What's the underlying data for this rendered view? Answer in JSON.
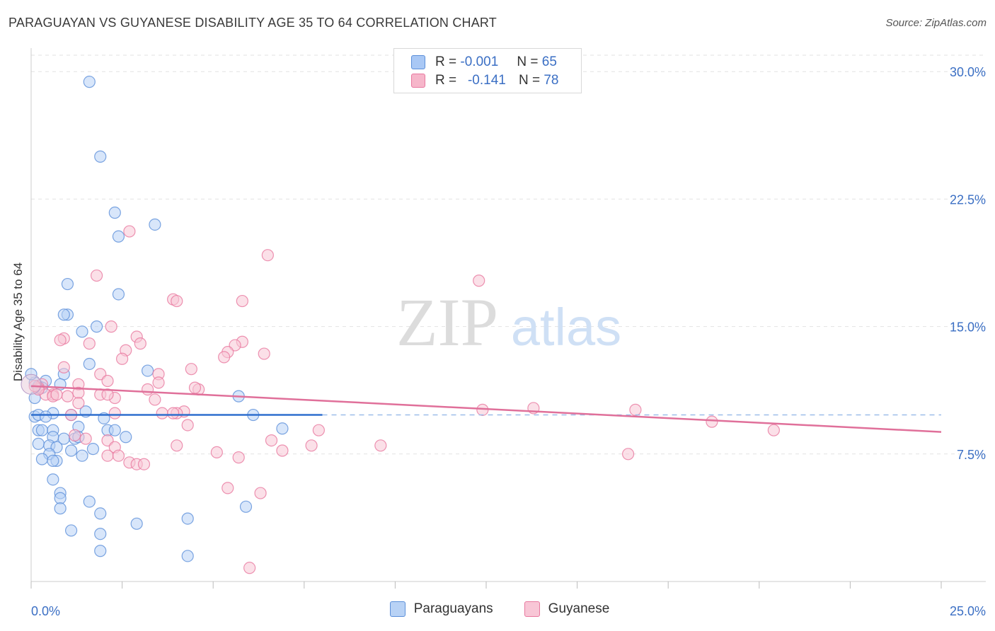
{
  "title": "PARAGUAYAN VS GUYANESE DISABILITY AGE 35 TO 64 CORRELATION CHART",
  "source": "Source: ZipAtlas.com",
  "watermark": {
    "zip": "ZIP",
    "atlas": "atlas"
  },
  "legend": {
    "r_label": "R =",
    "n_label": "N =",
    "rows": [
      {
        "r": "-0.001",
        "n": "65",
        "color": "#a9c8f5"
      },
      {
        "r": "-0.141",
        "n": "78",
        "color": "#f6b6ca"
      }
    ]
  },
  "chart_data": {
    "type": "scatter",
    "title": "PARAGUAYAN VS GUYANESE DISABILITY AGE 35 TO 64 CORRELATION CHART",
    "xlabel": "",
    "ylabel": "Disability Age 35 to 64",
    "xlim": [
      0,
      25
    ],
    "ylim": [
      0,
      31.3
    ],
    "x_tick_labels": [
      "0.0%",
      "25.0%"
    ],
    "y_ticks": [
      7.5,
      15.0,
      22.5,
      30.0
    ],
    "y_tick_labels": [
      "7.5%",
      "15.0%",
      "22.5%",
      "30.0%"
    ],
    "series": [
      {
        "name": "Paraguayans",
        "color": "#5b8fd9",
        "fill": "#b8d2f5",
        "trend": {
          "x": [
            0,
            8.0
          ],
          "y": [
            9.8,
            9.8
          ],
          "dashed_to": 25
        },
        "points": [
          [
            1.6,
            29.4
          ],
          [
            1.9,
            25.0
          ],
          [
            2.3,
            21.7
          ],
          [
            3.4,
            21.0
          ],
          [
            2.4,
            20.3
          ],
          [
            1.0,
            17.5
          ],
          [
            2.4,
            16.9
          ],
          [
            1.0,
            15.7
          ],
          [
            0.9,
            15.7
          ],
          [
            1.4,
            14.7
          ],
          [
            1.8,
            15.0
          ],
          [
            1.6,
            12.8
          ],
          [
            3.2,
            12.4
          ],
          [
            0.9,
            12.2
          ],
          [
            0.4,
            11.8
          ],
          [
            0.1,
            11.7
          ],
          [
            0.2,
            11.5
          ],
          [
            0.3,
            11.4
          ],
          [
            0.8,
            11.6
          ],
          [
            0.1,
            10.8
          ],
          [
            5.7,
            10.9
          ],
          [
            0.6,
            9.9
          ],
          [
            0.1,
            9.7
          ],
          [
            0.2,
            9.8
          ],
          [
            0.4,
            9.7
          ],
          [
            1.1,
            9.8
          ],
          [
            1.5,
            10.0
          ],
          [
            2.0,
            9.6
          ],
          [
            6.1,
            9.8
          ],
          [
            0.2,
            8.9
          ],
          [
            0.3,
            8.9
          ],
          [
            0.6,
            8.9
          ],
          [
            1.3,
            9.1
          ],
          [
            2.1,
            8.9
          ],
          [
            2.3,
            8.9
          ],
          [
            6.9,
            9.0
          ],
          [
            0.6,
            8.5
          ],
          [
            0.9,
            8.4
          ],
          [
            1.2,
            8.4
          ],
          [
            1.3,
            8.5
          ],
          [
            2.6,
            8.5
          ],
          [
            0.2,
            8.1
          ],
          [
            0.5,
            8.0
          ],
          [
            0.7,
            7.9
          ],
          [
            1.1,
            7.7
          ],
          [
            1.7,
            7.8
          ],
          [
            0.5,
            7.5
          ],
          [
            0.3,
            7.2
          ],
          [
            0.7,
            7.1
          ],
          [
            0.6,
            7.1
          ],
          [
            1.4,
            7.4
          ],
          [
            0.6,
            6.0
          ],
          [
            0.8,
            5.2
          ],
          [
            0.8,
            4.9
          ],
          [
            1.6,
            4.7
          ],
          [
            0.8,
            4.3
          ],
          [
            5.9,
            4.4
          ],
          [
            1.9,
            4.0
          ],
          [
            4.3,
            3.7
          ],
          [
            2.9,
            3.4
          ],
          [
            1.1,
            3.0
          ],
          [
            1.9,
            2.8
          ],
          [
            1.9,
            1.8
          ],
          [
            4.3,
            1.5
          ],
          [
            0.0,
            12.2
          ]
        ]
      },
      {
        "name": "Guyanese",
        "color": "#e8789f",
        "fill": "#f8c6d6",
        "trend": {
          "x": [
            0,
            25
          ],
          "y": [
            11.5,
            8.8
          ]
        },
        "points": [
          [
            2.7,
            20.6
          ],
          [
            6.5,
            19.2
          ],
          [
            12.3,
            17.7
          ],
          [
            1.8,
            18.0
          ],
          [
            3.9,
            16.6
          ],
          [
            4.0,
            16.5
          ],
          [
            5.8,
            16.5
          ],
          [
            2.2,
            15.0
          ],
          [
            0.9,
            14.3
          ],
          [
            2.9,
            14.4
          ],
          [
            0.8,
            14.2
          ],
          [
            3.0,
            14.0
          ],
          [
            5.8,
            14.1
          ],
          [
            5.6,
            13.9
          ],
          [
            1.6,
            14.0
          ],
          [
            2.6,
            13.6
          ],
          [
            5.4,
            13.5
          ],
          [
            5.3,
            13.2
          ],
          [
            6.4,
            13.4
          ],
          [
            2.5,
            13.1
          ],
          [
            0.9,
            12.6
          ],
          [
            1.9,
            12.2
          ],
          [
            3.5,
            12.2
          ],
          [
            4.4,
            12.5
          ],
          [
            3.5,
            11.7
          ],
          [
            2.1,
            11.8
          ],
          [
            1.3,
            11.6
          ],
          [
            3.2,
            11.3
          ],
          [
            4.6,
            11.3
          ],
          [
            4.5,
            11.4
          ],
          [
            1.3,
            11.1
          ],
          [
            0.6,
            11.0
          ],
          [
            1.0,
            10.9
          ],
          [
            2.3,
            10.8
          ],
          [
            3.4,
            10.7
          ],
          [
            1.3,
            10.5
          ],
          [
            4.2,
            10.0
          ],
          [
            12.4,
            10.1
          ],
          [
            13.8,
            10.2
          ],
          [
            16.6,
            10.1
          ],
          [
            3.6,
            9.9
          ],
          [
            4.0,
            9.9
          ],
          [
            3.9,
            9.9
          ],
          [
            2.3,
            9.9
          ],
          [
            1.1,
            9.8
          ],
          [
            4.3,
            9.2
          ],
          [
            18.7,
            9.4
          ],
          [
            7.9,
            8.9
          ],
          [
            20.4,
            8.9
          ],
          [
            1.2,
            8.6
          ],
          [
            6.6,
            8.3
          ],
          [
            1.5,
            8.4
          ],
          [
            2.1,
            8.3
          ],
          [
            9.6,
            8.0
          ],
          [
            4.0,
            8.0
          ],
          [
            7.7,
            8.0
          ],
          [
            2.3,
            7.9
          ],
          [
            6.9,
            7.7
          ],
          [
            5.1,
            7.6
          ],
          [
            5.7,
            7.3
          ],
          [
            2.1,
            7.4
          ],
          [
            2.4,
            7.4
          ],
          [
            2.7,
            7.0
          ],
          [
            2.9,
            6.9
          ],
          [
            3.1,
            6.9
          ],
          [
            16.4,
            7.5
          ],
          [
            5.4,
            5.5
          ],
          [
            6.3,
            5.2
          ],
          [
            0.3,
            11.6
          ],
          [
            0.2,
            11.4
          ],
          [
            0.4,
            11.0
          ],
          [
            0.6,
            10.9
          ],
          [
            0.7,
            11.0
          ],
          [
            1.9,
            11.0
          ],
          [
            2.1,
            11.0
          ],
          [
            0.2,
            11.3
          ],
          [
            0.1,
            11.5
          ],
          [
            6.0,
            0.8
          ]
        ]
      }
    ]
  },
  "bottom_legend": [
    {
      "label": "Paraguayans",
      "color": "#b8d2f5",
      "border": "#5b8fd9"
    },
    {
      "label": "Guyanese",
      "color": "#f8c6d6",
      "border": "#e8789f"
    }
  ]
}
